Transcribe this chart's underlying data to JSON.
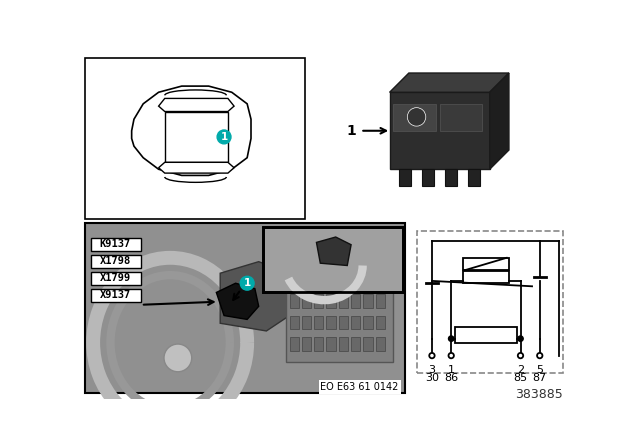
{
  "background_color": "#ffffff",
  "label_codes": [
    "K9137",
    "X1798",
    "X1799",
    "X9137"
  ],
  "pin_labels_top": [
    "3",
    "1",
    "2",
    "5"
  ],
  "pin_labels_bot": [
    "30",
    "86",
    "85",
    "87"
  ],
  "part_number": "383885",
  "eo_code": "EO E63 61 0142",
  "teal": "#00AAAA",
  "gray_engine": "#909090",
  "gray_light": "#c8c8c8",
  "gray_mid": "#a8a8a8",
  "gray_dark": "#686868"
}
